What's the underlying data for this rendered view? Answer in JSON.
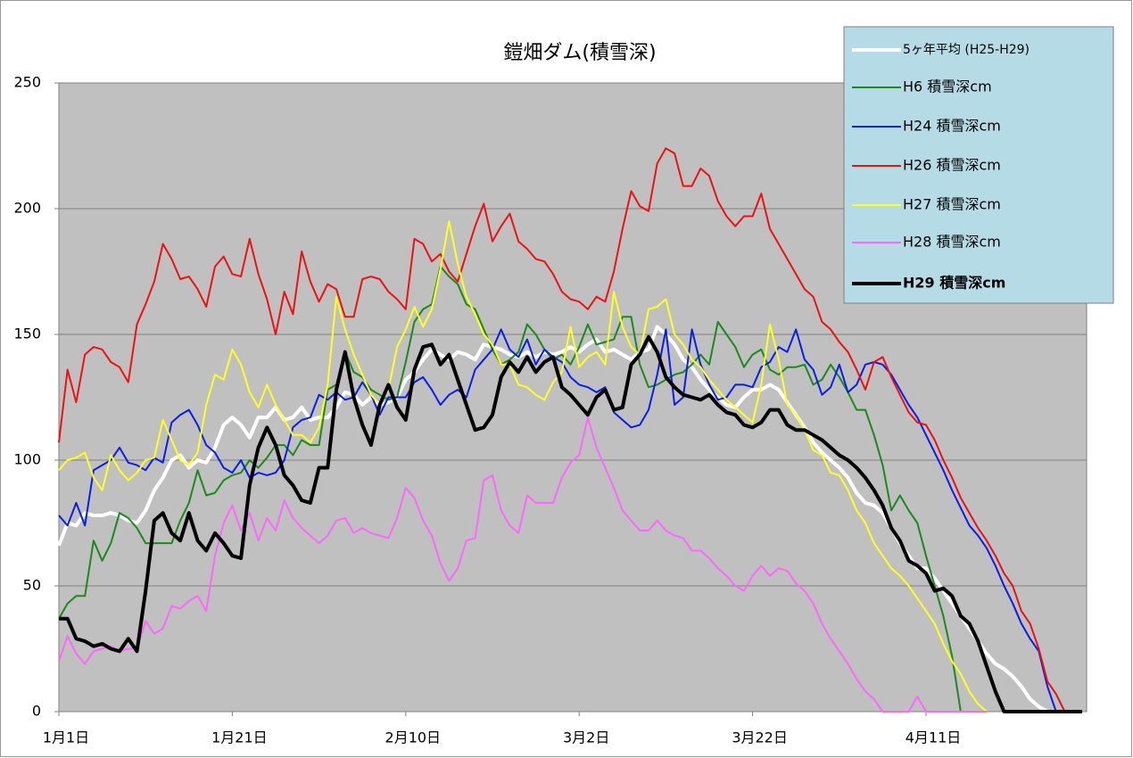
{
  "chart_data": {
    "type": "line",
    "title": "鎧畑ダム(積雪深)",
    "categories": [
      "1月1日",
      null,
      null,
      null,
      null,
      null,
      null,
      null,
      null,
      null,
      null,
      null,
      null,
      null,
      null,
      null,
      null,
      null,
      null,
      null,
      "1月21日",
      null,
      null,
      null,
      null,
      null,
      null,
      null,
      null,
      null,
      null,
      null,
      null,
      null,
      null,
      null,
      null,
      null,
      null,
      null,
      "2月10日",
      null,
      null,
      null,
      null,
      null,
      null,
      null,
      null,
      null,
      null,
      null,
      null,
      null,
      null,
      null,
      null,
      null,
      null,
      null,
      "3月2日",
      null,
      null,
      null,
      null,
      null,
      null,
      null,
      null,
      null,
      null,
      null,
      null,
      null,
      null,
      null,
      null,
      null,
      null,
      null,
      "3月22日",
      null,
      null,
      null,
      null,
      null,
      null,
      null,
      null,
      null,
      null,
      null,
      null,
      null,
      null,
      null,
      null,
      null,
      null,
      null,
      "4月11日",
      null,
      null,
      null,
      null,
      null,
      null,
      null,
      null,
      null,
      null,
      null,
      null,
      null,
      null,
      null,
      null,
      null,
      null
    ],
    "ylim": [
      0,
      250
    ],
    "yticks": [
      0,
      50,
      100,
      150,
      200,
      250
    ],
    "grid": true,
    "legend": "top-right",
    "series": [
      {
        "name": "5ヶ年平均 (H25-H29)",
        "color": "#ffffff",
        "values": [
          66,
          75,
          74,
          79,
          78,
          78,
          79,
          78,
          76,
          75,
          80,
          88,
          93,
          100,
          102,
          97,
          100,
          99,
          105,
          114,
          117,
          114,
          109,
          117,
          117,
          121,
          116,
          117,
          121,
          116,
          117,
          117,
          121,
          127,
          126,
          122,
          125,
          122,
          123,
          125,
          132,
          135,
          140,
          144,
          142,
          140,
          143,
          142,
          140,
          146,
          145,
          144,
          142,
          141,
          143,
          141,
          143,
          142,
          143,
          145,
          143,
          146,
          148,
          143,
          144,
          142,
          140,
          143,
          144,
          153,
          150,
          146,
          140,
          137,
          132,
          128,
          125,
          122,
          121,
          125,
          128,
          128,
          130,
          128,
          123,
          118,
          113,
          107,
          103,
          100,
          97,
          93,
          87,
          83,
          82,
          79,
          73,
          67,
          62,
          57,
          57,
          53,
          48,
          43,
          38,
          33,
          28,
          23,
          19,
          17,
          14,
          10,
          5,
          2,
          0,
          null,
          null,
          null,
          null
        ]
      },
      {
        "name": "H6 積雪深cm",
        "color": "#1a8a1a",
        "values": [
          37,
          43,
          46,
          46,
          68,
          60,
          67,
          79,
          77,
          73,
          67,
          67,
          67,
          67,
          76,
          83,
          96,
          86,
          87,
          92,
          94,
          95,
          100,
          97,
          101,
          106,
          106,
          102,
          108,
          106,
          106,
          128,
          130,
          143,
          135,
          133,
          128,
          126,
          124,
          125,
          139,
          155,
          160,
          162,
          177,
          173,
          170,
          162,
          160,
          152,
          144,
          138,
          140,
          143,
          154,
          150,
          144,
          140,
          142,
          138,
          145,
          154,
          146,
          147,
          148,
          157,
          157,
          138,
          129,
          130,
          132,
          134,
          135,
          138,
          142,
          138,
          155,
          150,
          145,
          137,
          142,
          144,
          136,
          134,
          137,
          137,
          138,
          130,
          132,
          138,
          133,
          127,
          120,
          120,
          110,
          98,
          80,
          86,
          80,
          75,
          62,
          50,
          38,
          22,
          0,
          null,
          null,
          null,
          null,
          null,
          null,
          null,
          null,
          null,
          null,
          null,
          null,
          null,
          null
        ]
      },
      {
        "name": "H24 積雪深cm",
        "color": "#0a1ee6",
        "values": [
          78,
          74,
          83,
          74,
          96,
          98,
          100,
          105,
          99,
          98,
          96,
          101,
          99,
          115,
          118,
          120,
          114,
          106,
          103,
          97,
          95,
          100,
          93,
          95,
          94,
          95,
          100,
          113,
          116,
          117,
          126,
          124,
          127,
          124,
          125,
          131,
          126,
          118,
          125,
          125,
          125,
          131,
          133,
          128,
          122,
          126,
          128,
          125,
          136,
          140,
          144,
          152,
          144,
          141,
          148,
          138,
          144,
          141,
          139,
          133,
          130,
          129,
          127,
          129,
          119,
          116,
          113,
          114,
          120,
          134,
          152,
          122,
          125,
          152,
          138,
          130,
          124,
          125,
          130,
          130,
          129,
          137,
          139,
          145,
          143,
          152,
          140,
          136,
          126,
          129,
          138,
          127,
          130,
          138,
          139,
          138,
          134,
          128,
          122,
          117,
          110,
          103,
          96,
          88,
          81,
          74,
          70,
          65,
          58,
          50,
          43,
          35,
          29,
          24,
          10,
          0,
          null,
          null,
          null
        ]
      },
      {
        "name": "H26 積雪深cm",
        "color": "#ee1111",
        "values": [
          107,
          136,
          123,
          142,
          145,
          144,
          139,
          137,
          131,
          154,
          162,
          171,
          186,
          180,
          172,
          173,
          168,
          161,
          177,
          181,
          174,
          173,
          188,
          174,
          164,
          150,
          167,
          158,
          183,
          171,
          163,
          170,
          168,
          157,
          157,
          172,
          173,
          172,
          167,
          164,
          160,
          188,
          186,
          179,
          182,
          175,
          171,
          182,
          193,
          202,
          187,
          193,
          198,
          187,
          184,
          180,
          179,
          174,
          167,
          164,
          163,
          160,
          165,
          163,
          175,
          192,
          207,
          201,
          199,
          218,
          224,
          222,
          209,
          209,
          216,
          213,
          203,
          197,
          193,
          197,
          197,
          206,
          192,
          186,
          180,
          174,
          168,
          165,
          155,
          152,
          147,
          143,
          136,
          128,
          139,
          141,
          133,
          126,
          119,
          115,
          114,
          108,
          100,
          93,
          85,
          79,
          73,
          68,
          62,
          55,
          50,
          40,
          35,
          25,
          12,
          7,
          0,
          null,
          null
        ]
      },
      {
        "name": "H27 積雪深cm",
        "color": "#ffff22",
        "values": [
          96,
          100,
          101,
          103,
          93,
          88,
          102,
          96,
          92,
          95,
          100,
          101,
          116,
          108,
          100,
          98,
          103,
          122,
          134,
          132,
          144,
          138,
          127,
          121,
          130,
          122,
          116,
          110,
          110,
          107,
          113,
          130,
          165,
          152,
          142,
          134,
          126,
          122,
          128,
          145,
          152,
          161,
          153,
          160,
          176,
          195,
          178,
          165,
          158,
          150,
          146,
          138,
          138,
          130,
          129,
          126,
          124,
          131,
          135,
          153,
          137,
          141,
          143,
          138,
          167,
          153,
          145,
          142,
          160,
          161,
          164,
          150,
          146,
          140,
          137,
          132,
          128,
          124,
          121,
          118,
          115,
          130,
          154,
          140,
          122,
          118,
          112,
          104,
          102,
          95,
          94,
          88,
          80,
          75,
          67,
          62,
          57,
          54,
          50,
          45,
          40,
          35,
          27,
          20,
          15,
          8,
          3,
          0,
          null,
          null,
          null,
          null,
          null,
          null,
          null,
          null,
          null,
          null,
          null
        ]
      },
      {
        "name": "H28 積雪深cm",
        "color": "#ff66ff",
        "values": [
          20,
          30,
          23,
          19,
          24,
          25,
          26,
          24,
          25,
          25,
          36,
          31,
          33,
          42,
          41,
          44,
          46,
          40,
          62,
          75,
          82,
          72,
          79,
          68,
          77,
          72,
          84,
          77,
          73,
          70,
          67,
          70,
          76,
          77,
          71,
          73,
          71,
          70,
          69,
          77,
          89,
          85,
          76,
          70,
          59,
          52,
          57,
          68,
          69,
          92,
          94,
          80,
          74,
          71,
          86,
          83,
          83,
          83,
          93,
          99,
          102,
          117,
          105,
          97,
          89,
          80,
          76,
          72,
          72,
          76,
          72,
          70,
          69,
          64,
          64,
          61,
          57,
          54,
          50,
          48,
          54,
          58,
          54,
          57,
          56,
          51,
          48,
          43,
          35,
          29,
          24,
          19,
          13,
          8,
          5,
          0,
          0,
          0,
          0,
          6,
          0,
          0,
          0,
          0,
          0,
          0,
          0,
          0,
          null,
          null,
          null,
          null,
          null,
          null,
          null,
          null,
          null,
          null,
          null
        ]
      },
      {
        "name": "H29 積雪深cm",
        "color": "#000000",
        "values": [
          37,
          37,
          29,
          28,
          26,
          27,
          25,
          24,
          29,
          24,
          48,
          76,
          79,
          71,
          68,
          79,
          68,
          64,
          71,
          67,
          62,
          61,
          90,
          105,
          113,
          106,
          94,
          90,
          84,
          83,
          97,
          97,
          128,
          143,
          125,
          114,
          106,
          122,
          130,
          121,
          116,
          136,
          145,
          146,
          138,
          142,
          132,
          122,
          112,
          113,
          118,
          133,
          139,
          135,
          141,
          135,
          139,
          141,
          129,
          126,
          122,
          118,
          125,
          128,
          120,
          121,
          138,
          142,
          149,
          143,
          133,
          129,
          126,
          125,
          124,
          126,
          122,
          119,
          118,
          114,
          113,
          115,
          120,
          120,
          114,
          112,
          112,
          110,
          108,
          105,
          102,
          100,
          97,
          93,
          88,
          82,
          73,
          68,
          60,
          58,
          55,
          48,
          49,
          46,
          38,
          35,
          28,
          18,
          8,
          0,
          0,
          0,
          0,
          0,
          0,
          0,
          0,
          0,
          0
        ]
      }
    ]
  }
}
